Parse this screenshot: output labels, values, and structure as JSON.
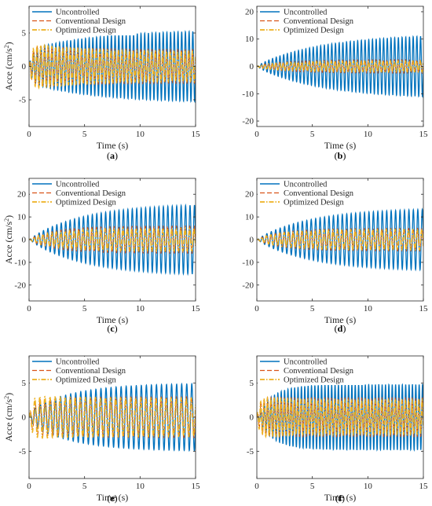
{
  "chart_data": [
    {
      "type": "line",
      "caption": "(a)",
      "xlabel": "Time (s)",
      "ylabel": "Acce (cm/s",
      "ylabel_sup": "2",
      "ylabel_close": ")",
      "xlim": [
        0,
        15
      ],
      "ylim": [
        -9,
        9
      ],
      "xticks": [
        0,
        5,
        10,
        15
      ],
      "yticks": [
        -5,
        0,
        5
      ],
      "legend": "top-left",
      "series": [
        {
          "name": "Uncontrolled",
          "color": "#0072BD",
          "style": "solid",
          "amp_start": 2.5,
          "amp_end": 5.5,
          "tau": 6,
          "freq": 3.0
        },
        {
          "name": "Conventional Design",
          "color": "#D95319",
          "style": "dashed",
          "amp_start": 3.2,
          "amp_end": 2.5,
          "tau": 4,
          "freq": 3.0
        },
        {
          "name": "Optimized Design",
          "color": "#EDB120",
          "style": "dashdot",
          "amp_start": 3.5,
          "amp_end": 2.2,
          "tau": 4,
          "freq": 3.0
        }
      ]
    },
    {
      "type": "line",
      "caption": "(b)",
      "xlabel": "Time (s)",
      "ylabel": "",
      "xlim": [
        0,
        15
      ],
      "ylim": [
        -22,
        22
      ],
      "xticks": [
        0,
        5,
        10,
        15
      ],
      "yticks": [
        -20,
        -10,
        0,
        10,
        20
      ],
      "legend": "top-right",
      "series": [
        {
          "name": "Uncontrolled",
          "color": "#0072BD",
          "style": "solid",
          "amp_start": 0.5,
          "amp_end": 12,
          "tau": 6,
          "freq": 3.0
        },
        {
          "name": "Conventional Design",
          "color": "#D95319",
          "style": "dashed",
          "amp_start": 0.5,
          "amp_end": 2.5,
          "tau": 3,
          "freq": 3.0
        },
        {
          "name": "Optimized Design",
          "color": "#EDB120",
          "style": "dashdot",
          "amp_start": 0.5,
          "amp_end": 2.0,
          "tau": 3,
          "freq": 3.0
        }
      ]
    },
    {
      "type": "line",
      "caption": "(c)",
      "xlabel": "Time (s)",
      "ylabel": "Acce (cm/s",
      "ylabel_sup": "2",
      "ylabel_close": ")",
      "xlim": [
        0,
        15
      ],
      "ylim": [
        -27,
        27
      ],
      "xticks": [
        0,
        5,
        10,
        15
      ],
      "yticks": [
        -20,
        -10,
        0,
        10,
        20
      ],
      "legend": "top-left",
      "series": [
        {
          "name": "Uncontrolled",
          "color": "#0072BD",
          "style": "solid",
          "amp_start": 0.5,
          "amp_end": 16,
          "tau": 5,
          "freq": 2.5
        },
        {
          "name": "Conventional Design",
          "color": "#D95319",
          "style": "dashed",
          "amp_start": 0.5,
          "amp_end": 6,
          "tau": 2.5,
          "freq": 2.5
        },
        {
          "name": "Optimized Design",
          "color": "#EDB120",
          "style": "dashdot",
          "amp_start": 0.5,
          "amp_end": 5,
          "tau": 2.5,
          "freq": 2.5
        }
      ]
    },
    {
      "type": "line",
      "caption": "(d)",
      "xlabel": "Time (s)",
      "ylabel": "",
      "xlim": [
        0,
        15
      ],
      "ylim": [
        -27,
        27
      ],
      "xticks": [
        0,
        5,
        10,
        15
      ],
      "yticks": [
        -20,
        -10,
        0,
        10,
        20
      ],
      "legend": "top-right",
      "series": [
        {
          "name": "Uncontrolled",
          "color": "#0072BD",
          "style": "solid",
          "amp_start": 0.5,
          "amp_end": 14,
          "tau": 5,
          "freq": 2.5
        },
        {
          "name": "Conventional Design",
          "color": "#D95319",
          "style": "dashed",
          "amp_start": 0.5,
          "amp_end": 5,
          "tau": 2.5,
          "freq": 2.5
        },
        {
          "name": "Optimized Design",
          "color": "#EDB120",
          "style": "dashdot",
          "amp_start": 0.5,
          "amp_end": 4.5,
          "tau": 2.5,
          "freq": 2.5
        }
      ]
    },
    {
      "type": "line",
      "caption": "(e)",
      "xlabel": "Time (s)",
      "ylabel": "Acce (cm/s",
      "ylabel_sup": "2",
      "ylabel_close": ")",
      "xlim": [
        0,
        15
      ],
      "ylim": [
        -9,
        9
      ],
      "xticks": [
        0,
        5,
        10,
        15
      ],
      "yticks": [
        -5,
        0,
        5
      ],
      "legend": "top-left",
      "series": [
        {
          "name": "Uncontrolled",
          "color": "#0072BD",
          "style": "solid",
          "amp_start": 1.0,
          "amp_end": 5,
          "tau": 4,
          "freq": 2.2
        },
        {
          "name": "Conventional Design",
          "color": "#D95319",
          "style": "dashed",
          "amp_start": 2.5,
          "amp_end": 3.0,
          "tau": 3,
          "freq": 2.2
        },
        {
          "name": "Optimized Design",
          "color": "#EDB120",
          "style": "dashdot",
          "amp_start": 3.2,
          "amp_end": 2.8,
          "tau": 3,
          "freq": 2.2
        }
      ]
    },
    {
      "type": "line",
      "caption": "(f)",
      "xlabel": "Time (s)",
      "ylabel": "",
      "xlim": [
        0,
        15
      ],
      "ylim": [
        -9,
        9
      ],
      "xticks": [
        0,
        5,
        10,
        15
      ],
      "yticks": [
        -5,
        0,
        5
      ],
      "legend": "top-right",
      "series": [
        {
          "name": "Uncontrolled",
          "color": "#0072BD",
          "style": "solid",
          "amp_start": 0.5,
          "amp_end": 4.8,
          "tau": 1.5,
          "freq": 3.3
        },
        {
          "name": "Conventional Design",
          "color": "#D95319",
          "style": "dashed",
          "amp_start": 3.0,
          "amp_end": 2.8,
          "tau": 1.5,
          "freq": 3.3
        },
        {
          "name": "Optimized Design",
          "color": "#EDB120",
          "style": "dashdot",
          "amp_start": 3.2,
          "amp_end": 2.5,
          "tau": 1.5,
          "freq": 3.3
        }
      ]
    }
  ]
}
